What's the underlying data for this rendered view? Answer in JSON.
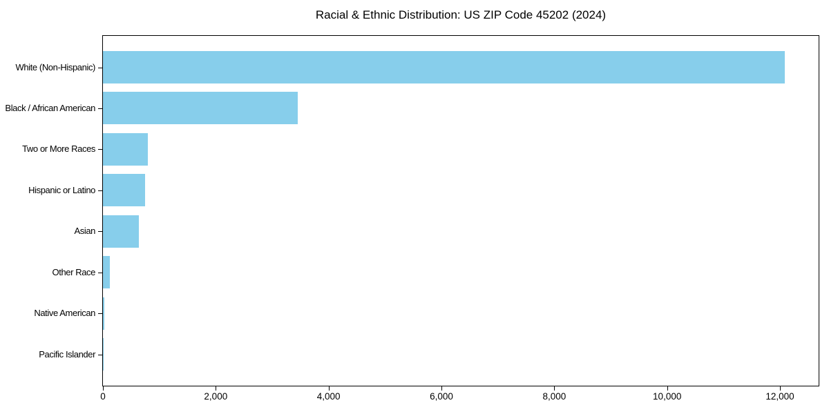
{
  "chart_data": {
    "type": "bar",
    "orientation": "horizontal",
    "title": "Racial & Ethnic Distribution: US ZIP Code 45202 (2024)",
    "categories": [
      "White (Non-Hispanic)",
      "Black / African American",
      "Two or More Races",
      "Hispanic or Latino",
      "Asian",
      "Other Race",
      "Native American",
      "Pacific Islander"
    ],
    "values": [
      12080,
      3450,
      790,
      750,
      640,
      120,
      30,
      10
    ],
    "bar_color": "#87CEEB",
    "axis_color": "#000000",
    "background_color": "#ffffff",
    "xlabel": "",
    "ylabel": "",
    "xlim": [
      0,
      12685
    ],
    "xticks": [
      0,
      2000,
      4000,
      6000,
      8000,
      10000,
      12000
    ],
    "xtick_labels": [
      "0",
      "2,000",
      "4,000",
      "6,000",
      "8,000",
      "10,000",
      "12,000"
    ],
    "grid": false,
    "legend": null
  }
}
